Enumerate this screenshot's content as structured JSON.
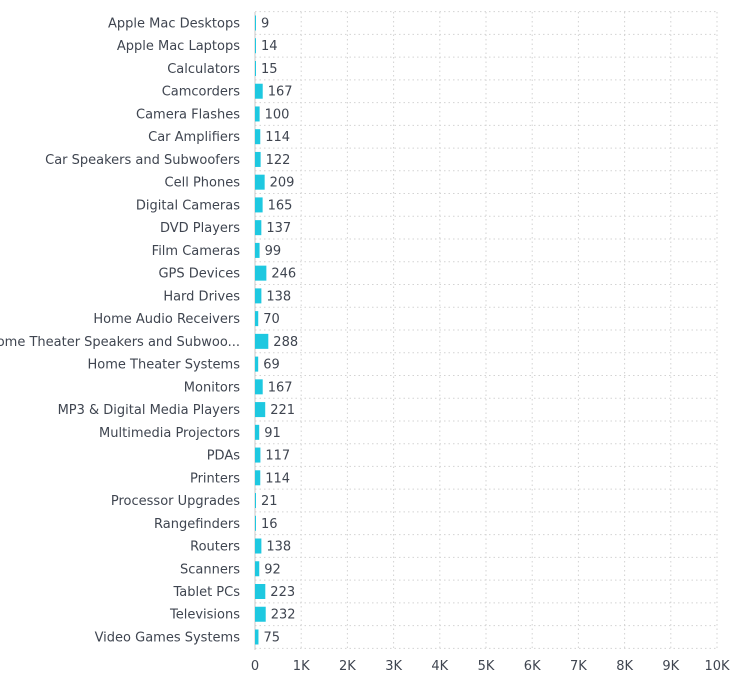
{
  "chart_data": {
    "type": "bar",
    "orientation": "horizontal",
    "categories": [
      "Apple Mac Desktops",
      "Apple Mac Laptops",
      "Calculators",
      "Camcorders",
      "Camera Flashes",
      "Car Amplifiers",
      "Car Speakers and Subwoofers",
      "Cell Phones",
      "Digital Cameras",
      "DVD Players",
      "Film Cameras",
      "GPS Devices",
      "Hard Drives",
      "Home Audio Receivers",
      "Home Theater Speakers and Subwoo...",
      "Home Theater Systems",
      "Monitors",
      "MP3 & Digital Media Players",
      "Multimedia Projectors",
      "PDAs",
      "Printers",
      "Processor Upgrades",
      "Rangefinders",
      "Routers",
      "Scanners",
      "Tablet PCs",
      "Televisions",
      "Video Games Systems"
    ],
    "values": [
      9,
      14,
      15,
      167,
      100,
      114,
      122,
      209,
      165,
      137,
      99,
      246,
      138,
      70,
      288,
      69,
      167,
      221,
      91,
      117,
      114,
      21,
      16,
      138,
      92,
      223,
      232,
      75
    ],
    "value_labels": [
      "9",
      "14",
      "15",
      "167",
      "100",
      "114",
      "122",
      "209",
      "165",
      "137",
      "99",
      "246",
      "138",
      "70",
      "288",
      "69",
      "167",
      "221",
      "91",
      "117",
      "114",
      "21",
      "16",
      "138",
      "92",
      "223",
      "232",
      "75"
    ],
    "xlim": [
      0,
      10000
    ],
    "x_ticks": [
      0,
      1000,
      2000,
      3000,
      4000,
      5000,
      6000,
      7000,
      8000,
      9000,
      10000
    ],
    "x_tick_labels": [
      "0",
      "1K",
      "2K",
      "3K",
      "4K",
      "5K",
      "6K",
      "7K",
      "8K",
      "9K",
      "10K"
    ],
    "grid": true,
    "bar_color": "#1ec8e0",
    "title": "",
    "xlabel": "",
    "ylabel": ""
  },
  "colors": {
    "text": "#3f4550",
    "grid": "#d3d3d3",
    "axis": "#c8c8c8"
  }
}
